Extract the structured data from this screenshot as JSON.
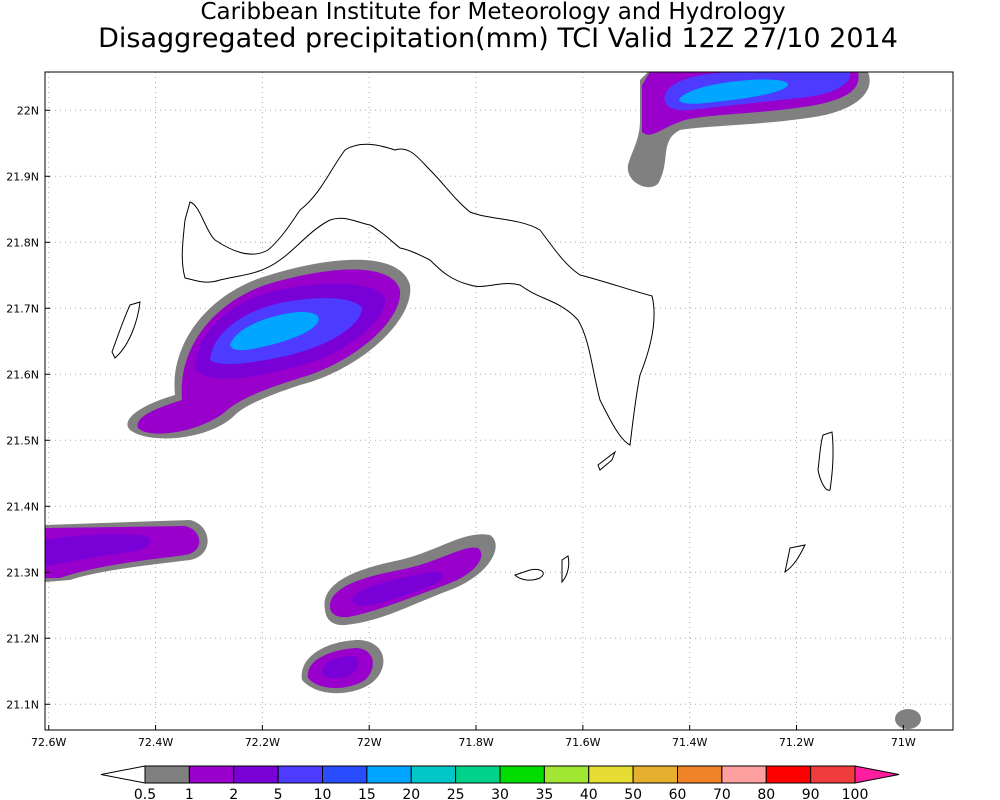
{
  "header": {
    "title": "Caribbean Institute for Meteorology and Hydrology",
    "subtitle": "Disaggregated precipitation(mm) TCI Valid 12Z 27/10 2014"
  },
  "map": {
    "lon_range": [
      -72.607,
      -70.907
    ],
    "lat_range": [
      21.061,
      22.058
    ],
    "lon_ticks": [
      {
        "value": -72.6,
        "label": "72.6W"
      },
      {
        "value": -72.4,
        "label": "72.4W"
      },
      {
        "value": -72.2,
        "label": "72.2W"
      },
      {
        "value": -72,
        "label": "72W"
      },
      {
        "value": -71.8,
        "label": "71.8W"
      },
      {
        "value": -71.6,
        "label": "71.6W"
      },
      {
        "value": -71.4,
        "label": "71.4W"
      },
      {
        "value": -71.2,
        "label": "71.2W"
      },
      {
        "value": -71,
        "label": "71W"
      }
    ],
    "lat_ticks": [
      {
        "value": 22,
        "label": "22N"
      },
      {
        "value": 21.9,
        "label": "21.9N"
      },
      {
        "value": 21.8,
        "label": "21.8N"
      },
      {
        "value": 21.7,
        "label": "21.7N"
      },
      {
        "value": 21.6,
        "label": "21.6N"
      },
      {
        "value": 21.5,
        "label": "21.5N"
      },
      {
        "value": 21.4,
        "label": "21.4N"
      },
      {
        "value": 21.3,
        "label": "21.3N"
      },
      {
        "value": 21.2,
        "label": "21.2N"
      },
      {
        "value": 21.1,
        "label": "21.1N"
      }
    ]
  },
  "colorbar": {
    "labels": [
      "0.5",
      "1",
      "2",
      "5",
      "10",
      "15",
      "20",
      "25",
      "30",
      "35",
      "40",
      "50",
      "60",
      "70",
      "80",
      "90",
      "100"
    ],
    "colors": [
      "#ffffff",
      "#808080",
      "#9900cc",
      "#7a00d8",
      "#4d3bff",
      "#2a4cff",
      "#00a6ff",
      "#00c8c8",
      "#00d28c",
      "#00dc00",
      "#a0e632",
      "#e6dc32",
      "#e6af2d",
      "#f08228",
      "#ffa0a0",
      "#ff0000",
      "#f03c3c",
      "#ff1ea0"
    ]
  }
}
